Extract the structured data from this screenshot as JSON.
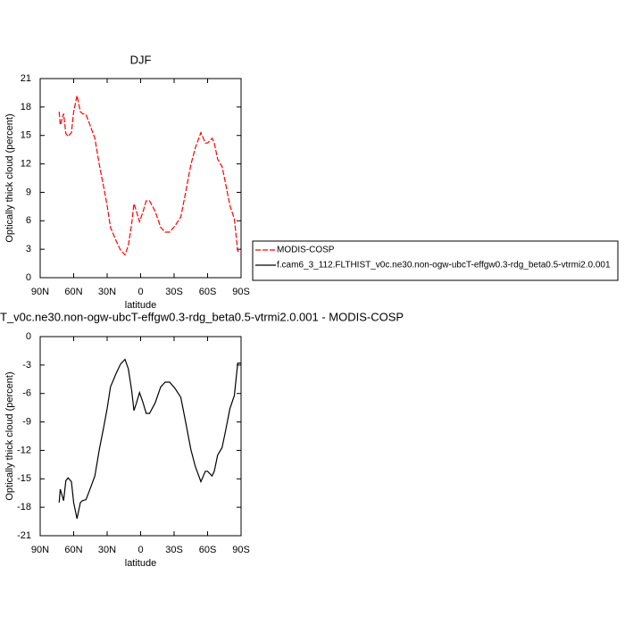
{
  "chart_data": [
    {
      "type": "line",
      "title": "DJF",
      "x_label": "latitude",
      "y_label": "Optically thick cloud (percent)",
      "x": [
        73,
        72,
        69,
        67,
        65,
        62,
        60,
        57,
        54,
        52,
        49,
        46,
        41,
        37,
        33,
        30,
        27,
        22,
        18,
        14,
        11,
        8,
        6,
        4,
        1,
        -2,
        -5,
        -8,
        -13,
        -18,
        -22,
        -26,
        -31,
        -36,
        -40,
        -45,
        -49,
        -54,
        -58,
        -60,
        -64,
        -66,
        -69,
        -73,
        -76,
        -80,
        -84,
        -87,
        -90
      ],
      "series": [
        {
          "name": "MODIS-COSP",
          "color": "#ff0000",
          "line_style": "dashed",
          "values": [
            17.5,
            16.1,
            17.3,
            15.2,
            14.9,
            15.3,
            17.5,
            19.2,
            17.5,
            17.3,
            17.2,
            16.3,
            14.7,
            11.9,
            9.5,
            7.6,
            5.3,
            3.9,
            2.9,
            2.4,
            3.4,
            5.7,
            7.8,
            7.1,
            5.9,
            6.9,
            8.1,
            8.1,
            7.0,
            5.3,
            4.8,
            4.8,
            5.5,
            6.4,
            8.8,
            11.9,
            13.7,
            15.3,
            14.2,
            14.2,
            14.7,
            14.2,
            12.5,
            11.7,
            10.0,
            7.6,
            6.2,
            2.8,
            2.8
          ]
        },
        {
          "name": "f.cam6_3_112.FLTHIST_v0c.ne30.non-ogw-ubcT-effgw0.3-rdg_beta0.5-vtrmi2.0.001",
          "color": "#000000",
          "line_style": "solid",
          "values": [
            null,
            null,
            null,
            null,
            null,
            null,
            null,
            null,
            null,
            null,
            null,
            null,
            null,
            null,
            null,
            null,
            null,
            null,
            null,
            null,
            null,
            null,
            null,
            null,
            null,
            null,
            null,
            null,
            null,
            null,
            null,
            null,
            null,
            null,
            null,
            null,
            null,
            null,
            null,
            null,
            null,
            null,
            null,
            null,
            null,
            null,
            null,
            null,
            null
          ]
        }
      ],
      "xlim": [
        90,
        -90
      ],
      "xticks": [
        {
          "value": 90,
          "label": "90N"
        },
        {
          "value": 60,
          "label": "60N"
        },
        {
          "value": 30,
          "label": "30N"
        },
        0,
        {
          "value": -30,
          "label": "30S"
        },
        {
          "value": -60,
          "label": "60S"
        },
        {
          "value": -90,
          "label": "90S"
        }
      ],
      "ylim": [
        0,
        21
      ],
      "yticks": [
        0,
        3,
        6,
        9,
        12,
        15,
        18,
        21
      ],
      "legend": "outside-right"
    },
    {
      "type": "line",
      "title": "T_v0c.ne30.non-ogw-ubcT-effgw0.3-rdg_beta0.5-vtrmi2.0.001 - MODIS-COSP",
      "x_label": "latitude",
      "y_label": "Optically thick cloud (percent)",
      "x": [
        73,
        72,
        69,
        67,
        65,
        62,
        60,
        57,
        54,
        52,
        49,
        46,
        41,
        37,
        33,
        30,
        27,
        22,
        18,
        14,
        11,
        8,
        6,
        4,
        1,
        -2,
        -5,
        -8,
        -13,
        -18,
        -22,
        -26,
        -31,
        -36,
        -40,
        -45,
        -49,
        -54,
        -58,
        -60,
        -64,
        -66,
        -69,
        -73,
        -76,
        -80,
        -84,
        -87,
        -90
      ],
      "color": "#000000",
      "values": [
        -17.5,
        -16.1,
        -17.3,
        -15.2,
        -14.9,
        -15.3,
        -17.5,
        -19.2,
        -17.5,
        -17.3,
        -17.2,
        -16.3,
        -14.7,
        -11.9,
        -9.5,
        -7.6,
        -5.3,
        -3.9,
        -2.9,
        -2.4,
        -3.4,
        -5.7,
        -7.8,
        -7.1,
        -5.9,
        -6.9,
        -8.1,
        -8.1,
        -7.0,
        -5.3,
        -4.8,
        -4.8,
        -5.5,
        -6.4,
        -8.8,
        -11.9,
        -13.7,
        -15.3,
        -14.2,
        -14.2,
        -14.7,
        -14.2,
        -12.5,
        -11.7,
        -10.0,
        -7.6,
        -6.2,
        -2.8,
        -2.8
      ],
      "xlim": [
        90,
        -90
      ],
      "xticks": [
        {
          "value": 90,
          "label": "90N"
        },
        {
          "value": 60,
          "label": "60N"
        },
        {
          "value": 30,
          "label": "30N"
        },
        0,
        {
          "value": -30,
          "label": "30S"
        },
        {
          "value": -60,
          "label": "60S"
        },
        {
          "value": -90,
          "label": "90S"
        }
      ],
      "ylim": [
        -21,
        0
      ],
      "yticks": [
        -21,
        -18,
        -15,
        -12,
        -9,
        -6,
        -3,
        0
      ]
    }
  ]
}
